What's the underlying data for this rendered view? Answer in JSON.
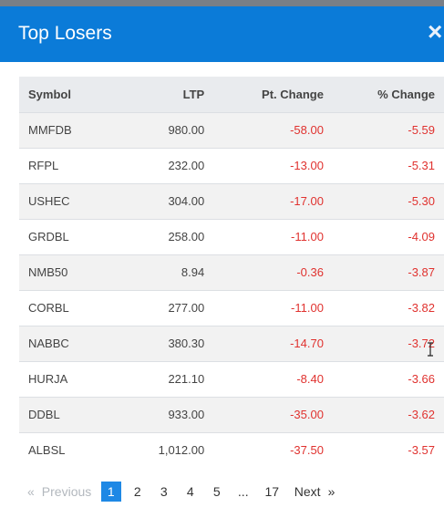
{
  "modal": {
    "title": "Top Losers",
    "close_glyph": "×",
    "background_text": "... .. ... .. .. .. ..."
  },
  "table": {
    "headers": [
      "Symbol",
      "LTP",
      "Pt. Change",
      "% Change"
    ],
    "rows": [
      {
        "symbol": "MMFDB",
        "ltp": "980.00",
        "pt_change": "-58.00",
        "pct_change": "-5.59"
      },
      {
        "symbol": "RFPL",
        "ltp": "232.00",
        "pt_change": "-13.00",
        "pct_change": "-5.31"
      },
      {
        "symbol": "USHEC",
        "ltp": "304.00",
        "pt_change": "-17.00",
        "pct_change": "-5.30"
      },
      {
        "symbol": "GRDBL",
        "ltp": "258.00",
        "pt_change": "-11.00",
        "pct_change": "-4.09"
      },
      {
        "symbol": "NMB50",
        "ltp": "8.94",
        "pt_change": "-0.36",
        "pct_change": "-3.87"
      },
      {
        "symbol": "CORBL",
        "ltp": "277.00",
        "pt_change": "-11.00",
        "pct_change": "-3.82"
      },
      {
        "symbol": "NABBC",
        "ltp": "380.30",
        "pt_change": "-14.70",
        "pct_change": "-3.72"
      },
      {
        "symbol": "HURJA",
        "ltp": "221.10",
        "pt_change": "-8.40",
        "pct_change": "-3.66"
      },
      {
        "symbol": "DDBL",
        "ltp": "933.00",
        "pt_change": "-35.00",
        "pct_change": "-3.62"
      },
      {
        "symbol": "ALBSL",
        "ltp": "1,012.00",
        "pt_change": "-37.50",
        "pct_change": "-3.57"
      }
    ]
  },
  "pagination": {
    "prev_arrow": "«",
    "prev_label": "Previous",
    "pages": [
      "1",
      "2",
      "3",
      "4",
      "5",
      "...",
      "17"
    ],
    "current_page": "1",
    "next_label": "Next",
    "next_arrow": "»"
  },
  "colors": {
    "header_bg": "#0b7bd8",
    "negative": "#e0322f",
    "active_page": "#1e88e5"
  }
}
